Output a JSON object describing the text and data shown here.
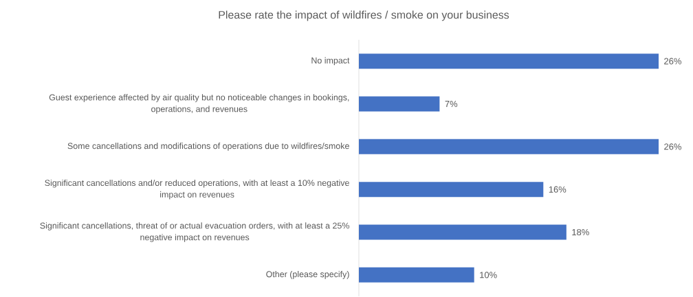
{
  "chart_data": {
    "type": "bar",
    "orientation": "horizontal",
    "title": "Please rate the impact of wildfires / smoke on your business",
    "categories": [
      "No impact",
      "Guest experience affected by air quality but no noticeable changes in bookings, operations, and revenues",
      "Some cancellations and modifications of operations due to wildfires/smoke",
      "Significant cancellations and/or reduced operations, with at least a 10% negative impact on revenues",
      "Significant cancellations, threat of or actual evacuation orders, with at least a 25% negative impact on revenues",
      "Other (please specify)"
    ],
    "values": [
      26,
      7,
      26,
      16,
      18,
      10
    ],
    "value_labels": [
      "26%",
      "7%",
      "26%",
      "16%",
      "18%",
      "10%"
    ],
    "color": "#4472c4"
  }
}
